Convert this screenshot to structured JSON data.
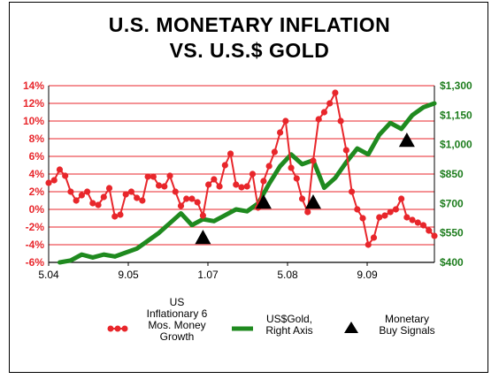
{
  "chart_data": {
    "type": "line",
    "title_line1": "U.S. MONETARY INFLATION",
    "title_line2": "VS. U.S.$ GOLD",
    "x_tick_labels": [
      "5.04",
      "9.05",
      "1.07",
      "5.08",
      "9.09"
    ],
    "x_range": [
      0,
      70
    ],
    "left_axis": {
      "ticks": [
        "14%",
        "12%",
        "10%",
        "8%",
        "6%",
        "4%",
        "2%",
        "0%",
        "-2%",
        "-4%",
        "-6%"
      ],
      "range": [
        -6,
        14
      ],
      "color": "#e8262b"
    },
    "right_axis": {
      "ticks": [
        "$1,300",
        "$1,150",
        "$1,000",
        "$850",
        "$700",
        "$550",
        "$400"
      ],
      "range": [
        400,
        1300
      ],
      "color": "#1e7d1e"
    },
    "grid": true,
    "series": [
      {
        "name": "US Inflationary 6 Mos. Money Growth",
        "axis": "left",
        "color": "#e8262b",
        "x": [
          0,
          1,
          2,
          3,
          4,
          5,
          6,
          7,
          8,
          9,
          10,
          11,
          12,
          13,
          14,
          15,
          16,
          17,
          18,
          19,
          20,
          21,
          22,
          23,
          24,
          25,
          26,
          27,
          28,
          29,
          30,
          31,
          32,
          33,
          34,
          35,
          36,
          37,
          38,
          39,
          40,
          41,
          42,
          43,
          44,
          45,
          46,
          47,
          48,
          49,
          50,
          51,
          52,
          53,
          54,
          55,
          56,
          57,
          58,
          59,
          60,
          61,
          62,
          63,
          64,
          65,
          66,
          67,
          68,
          69,
          70
        ],
        "values": [
          3.0,
          3.3,
          4.5,
          3.8,
          2.0,
          1.0,
          1.6,
          2.0,
          0.7,
          0.5,
          1.4,
          2.4,
          -0.8,
          -0.6,
          1.7,
          2.0,
          1.3,
          1.0,
          3.7,
          3.7,
          2.7,
          2.6,
          3.8,
          2.0,
          0.4,
          1.2,
          1.2,
          0.8,
          -0.7,
          2.8,
          3.4,
          2.6,
          5.0,
          6.3,
          2.8,
          2.5,
          2.6,
          4.0,
          0.2,
          3.2,
          4.9,
          6.5,
          8.7,
          10.0,
          4.7,
          3.5,
          1.2,
          -0.3,
          5.5,
          10.2,
          11.0,
          12.0,
          13.2,
          10.0,
          6.7,
          2.0,
          0.0,
          -1.0,
          -4.0,
          -3.2,
          -0.9,
          -0.7,
          -0.3,
          0.0,
          1.2,
          -0.9,
          -1.2,
          -1.5,
          -1.8,
          -2.4,
          -3.0
        ]
      },
      {
        "name": "US$Gold, Right Axis",
        "axis": "right",
        "color": "#1f8a1f",
        "x": [
          2,
          4,
          6,
          8,
          10,
          12,
          14,
          16,
          18,
          20,
          22,
          24,
          26,
          28,
          30,
          32,
          34,
          36,
          38,
          40,
          42,
          44,
          46,
          48,
          50,
          52,
          54,
          56,
          58,
          60,
          62,
          64,
          66,
          68,
          70
        ],
        "values": [
          400,
          410,
          440,
          425,
          440,
          430,
          450,
          470,
          510,
          550,
          600,
          650,
          590,
          620,
          610,
          640,
          670,
          660,
          700,
          800,
          890,
          950,
          900,
          920,
          780,
          830,
          910,
          980,
          950,
          1050,
          1110,
          1080,
          1150,
          1190,
          1210
        ]
      },
      {
        "name": "Monetary Buy Signals",
        "axis": "left",
        "color": "#000000",
        "marker": "triangle",
        "x": [
          28,
          39,
          48,
          65
        ],
        "values": [
          -3.2,
          0.8,
          0.8,
          7.8
        ]
      }
    ],
    "legend": [
      {
        "kind": "line-dots",
        "color": "#e8262b",
        "lines": [
          "US",
          "Inflationary 6",
          "Mos. Money",
          "Growth"
        ]
      },
      {
        "kind": "line",
        "color": "#1f8a1f",
        "lines": [
          "US$Gold,",
          "Right Axis"
        ]
      },
      {
        "kind": "triangle",
        "color": "#000000",
        "lines": [
          "Monetary",
          "Buy Signals"
        ]
      }
    ],
    "legend_placement": "bottom"
  }
}
